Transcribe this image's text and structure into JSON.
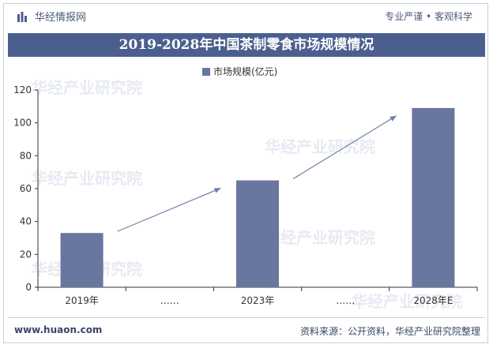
{
  "header": {
    "brand_name": "华经情报网",
    "slogan": "专业严谨 • 客观科学"
  },
  "chart_data": {
    "type": "bar",
    "title": "2019-2028年中国茶制零食市场规模情况",
    "categories": [
      "2019年",
      "……",
      "2023年",
      "……",
      "2028年E"
    ],
    "series": [
      {
        "name": "市场规模(亿元)",
        "values": [
          33,
          null,
          65,
          null,
          109
        ]
      }
    ],
    "ylim": [
      0,
      120
    ],
    "yticks": [
      0,
      20,
      40,
      60,
      80,
      100,
      120
    ],
    "xlabel": "",
    "ylabel": "",
    "legend_position": "top-center",
    "grid": false,
    "bar_color": "#6876a0",
    "trend_arrows": true
  },
  "footer": {
    "url": "www.huaon.com",
    "source": "资料来源：公开资料，华经产业研究院整理"
  },
  "watermark_text": "华经产业研究院",
  "colors": {
    "title_bg": "#4b5f8f",
    "bar": "#6876a0",
    "arrow": "#6f7fa8"
  }
}
